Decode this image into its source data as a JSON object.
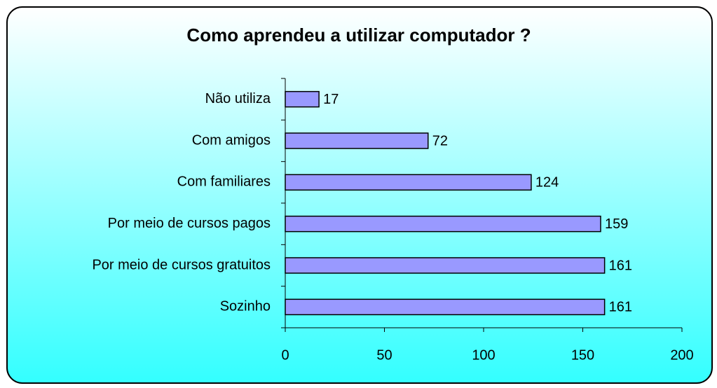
{
  "chart_data": {
    "type": "bar",
    "orientation": "horizontal",
    "title": "Como aprendeu a utilizar computador ?",
    "categories": [
      "Não utiliza",
      "Com amigos",
      "Com familiares",
      "Por meio de cursos pagos",
      "Por meio de cursos gratuitos",
      "Sozinho"
    ],
    "values": [
      17,
      72,
      124,
      159,
      161,
      161
    ],
    "color": "#9999ff",
    "xlim": [
      0,
      200
    ],
    "xticks": [
      0,
      50,
      100,
      150,
      200
    ],
    "grid": false
  }
}
